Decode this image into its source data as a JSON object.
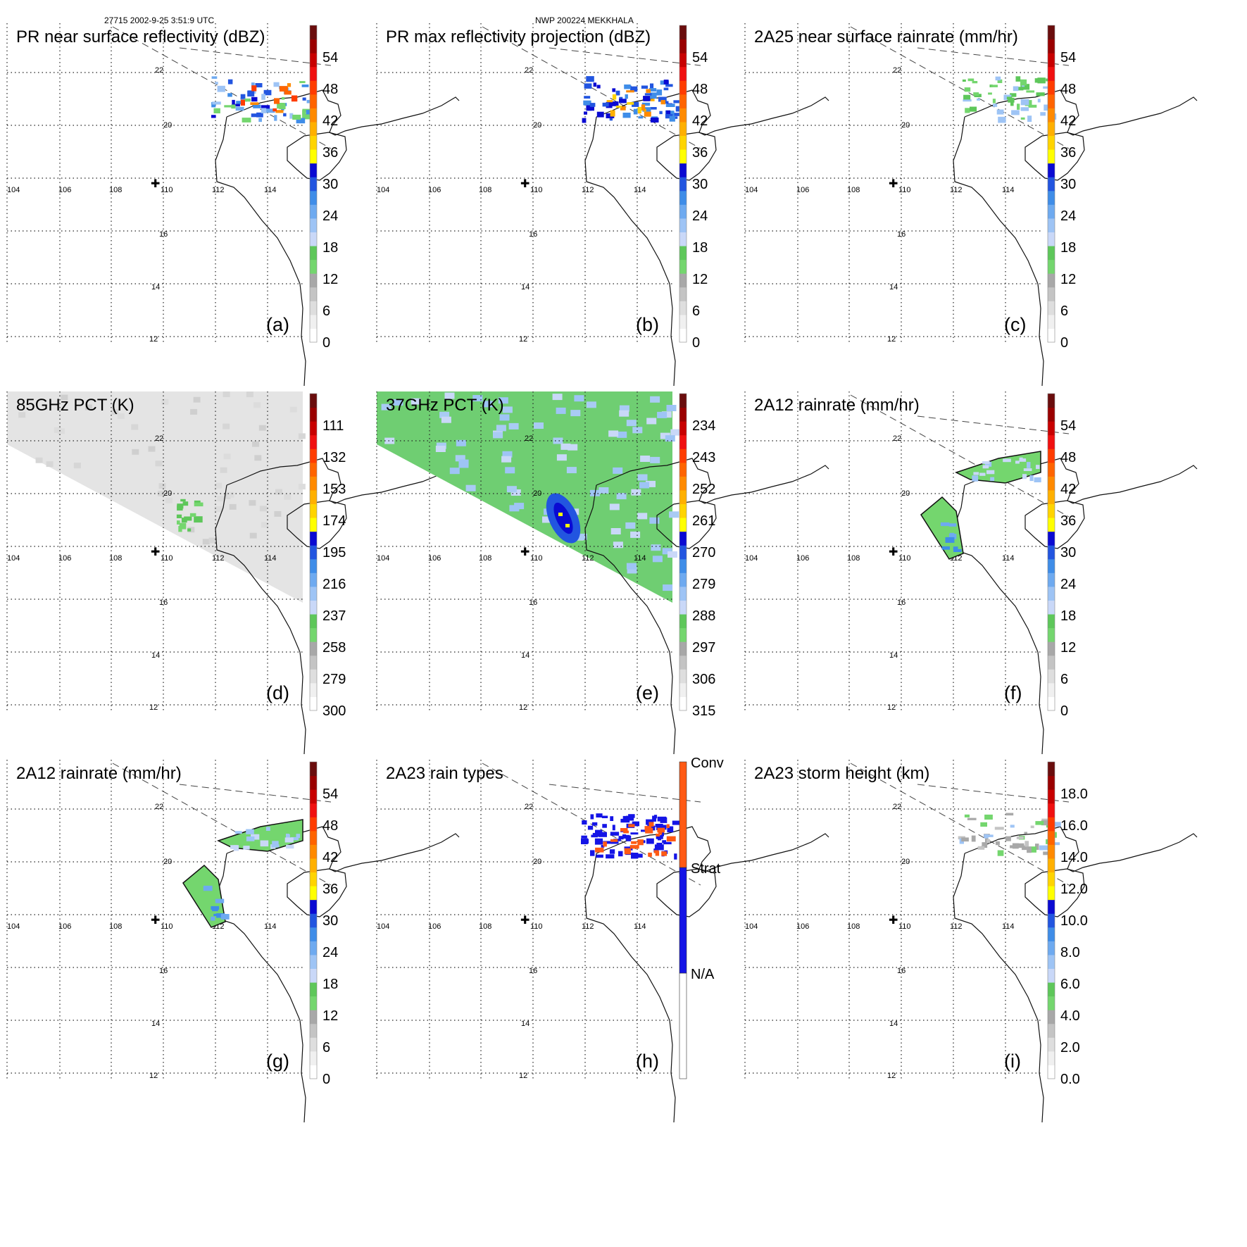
{
  "header": {
    "orbit_time": "27715 2002-9-25 3:51:9 UTC",
    "storm": "NWP 200224 MEKKHALA"
  },
  "map": {
    "lon_labels": [
      "104",
      "106",
      "108",
      "110",
      "112",
      "114"
    ],
    "lat_labels": [
      "22",
      "20",
      "16",
      "14",
      "12"
    ]
  },
  "chart_data": [
    {
      "type": "heatmap",
      "label": "(a)",
      "title": "PR near surface reflectivity (dBZ)",
      "colorbar": {
        "ticks": [
          "0",
          "6",
          "12",
          "18",
          "24",
          "30",
          "36",
          "42",
          "48",
          "54"
        ]
      },
      "region": "pr"
    },
    {
      "type": "heatmap",
      "label": "(b)",
      "title": "PR max reflectivity projection (dBZ)",
      "colorbar": {
        "ticks": [
          "0",
          "6",
          "12",
          "18",
          "24",
          "30",
          "36",
          "42",
          "48",
          "54"
        ]
      },
      "region": "pr"
    },
    {
      "type": "heatmap",
      "label": "(c)",
      "title": "2A25 near surface rainrate (mm/hr)",
      "colorbar": {
        "ticks": [
          "0",
          "6",
          "12",
          "18",
          "24",
          "30",
          "36",
          "42",
          "48",
          "54"
        ]
      },
      "region": "pr"
    },
    {
      "type": "heatmap",
      "label": "(d)",
      "title": "85GHz PCT (K)",
      "colorbar": {
        "ticks": [
          "300",
          "279",
          "258",
          "237",
          "216",
          "195",
          "174",
          "153",
          "132",
          "111"
        ]
      },
      "region": "tmi85"
    },
    {
      "type": "heatmap",
      "label": "(e)",
      "title": "37GHz PCT (K)",
      "colorbar": {
        "ticks": [
          "315",
          "306",
          "297",
          "288",
          "279",
          "270",
          "261",
          "252",
          "243",
          "234"
        ]
      },
      "region": "tmi37"
    },
    {
      "type": "heatmap",
      "label": "(f)",
      "title": "2A12 rainrate (mm/hr)",
      "colorbar": {
        "ticks": [
          "0",
          "6",
          "12",
          "18",
          "24",
          "30",
          "36",
          "42",
          "48",
          "54"
        ]
      },
      "region": "tmirain"
    },
    {
      "type": "heatmap",
      "label": "(g)",
      "title": "2A12 rainrate (mm/hr)",
      "colorbar": {
        "ticks": [
          "0",
          "6",
          "12",
          "18",
          "24",
          "30",
          "36",
          "42",
          "48",
          "54"
        ]
      },
      "region": "tmirain"
    },
    {
      "type": "heatmap",
      "label": "(h)",
      "title": "2A23 rain types",
      "colorbar": {
        "categorical": true,
        "ticks": [
          "N/A",
          "Strat",
          "Conv"
        ]
      },
      "region": "raintype"
    },
    {
      "type": "heatmap",
      "label": "(i)",
      "title": "2A23 storm height (km)",
      "colorbar": {
        "ticks": [
          "0.0",
          "2.0",
          "4.0",
          "6.0",
          "8.0",
          "10.0",
          "12.0",
          "14.0",
          "16.0",
          "18.0"
        ]
      },
      "region": "pr"
    }
  ],
  "colors": {
    "scale": [
      "#ffffff",
      "#f0f0f0",
      "#dedede",
      "#c4c4c4",
      "#a8a8a8",
      "#74d66e",
      "#5ec75a",
      "#c9d8f8",
      "#9ec4f5",
      "#6eaaf0",
      "#3f8de8",
      "#2255e0",
      "#0a0ad2",
      "#ffff00",
      "#ffd400",
      "#ffb000",
      "#ff8a00",
      "#ff6400",
      "#ff3c00",
      "#f01010",
      "#c80000",
      "#9a0000",
      "#6a0d0d"
    ],
    "rain_scale": [
      "#74d66e",
      "#5ec75a",
      "#c9d8f8",
      "#9ec4f5",
      "#6eaaf0",
      "#3f8de8",
      "#2255e0",
      "#0a0ad2",
      "#ffff00",
      "#ffd400",
      "#ffb000",
      "#ff8a00",
      "#ff6400",
      "#ff3c00",
      "#f01010",
      "#c80000",
      "#9a0000",
      "#6a0d0d"
    ],
    "conv": "#ff5a14",
    "strat": "#1414e6"
  }
}
